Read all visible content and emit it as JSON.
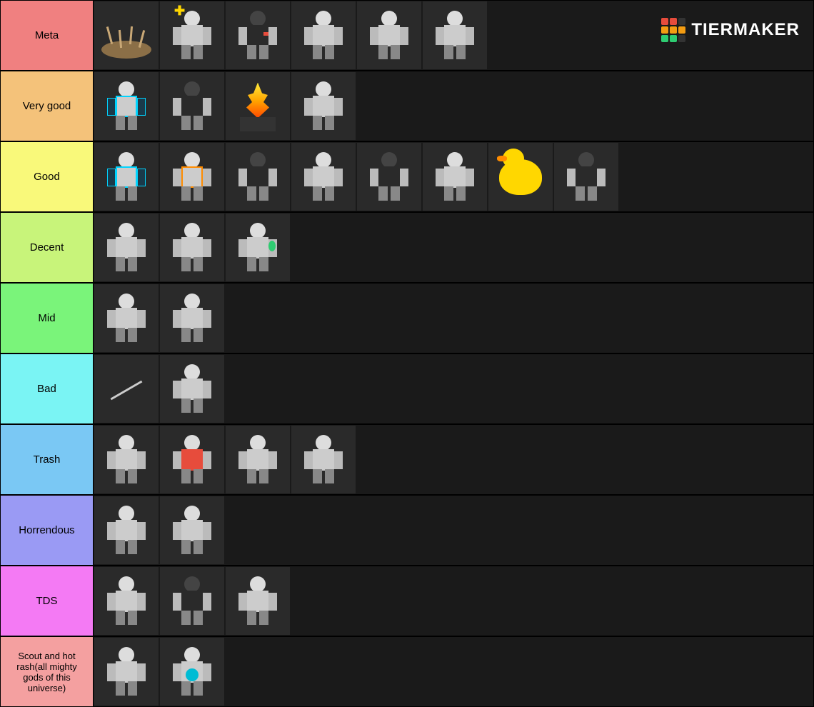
{
  "logo": {
    "text": "TIERMAKER",
    "grid_colors": [
      "#e74c3c",
      "#e74c3c",
      "#333",
      "#f39c12",
      "#f39c12",
      "#f39c12",
      "#2ecc71",
      "#2ecc71",
      "#333"
    ]
  },
  "tiers": [
    {
      "label": "Meta",
      "color": "#f08080",
      "items": [
        {
          "name": "trap-unit",
          "type": "trap"
        },
        {
          "name": "medic-unit",
          "type": "char",
          "accent": "yellow"
        },
        {
          "name": "riot-unit",
          "type": "char",
          "accent": "red-dark"
        },
        {
          "name": "heavy-unit-1",
          "type": "char"
        },
        {
          "name": "sniper-unit",
          "type": "char"
        },
        {
          "name": "soldier-unit-1",
          "type": "char"
        }
      ]
    },
    {
      "label": "Very good",
      "color": "#f4c27a",
      "items": [
        {
          "name": "tech-unit-1",
          "type": "char",
          "accent": "cyan"
        },
        {
          "name": "dark-unit-1",
          "type": "char",
          "accent": "dark"
        },
        {
          "name": "campfire-unit",
          "type": "fire"
        },
        {
          "name": "soldier-unit-2",
          "type": "char"
        }
      ]
    },
    {
      "label": "Good",
      "color": "#f9f97a",
      "items": [
        {
          "name": "tech-unit-2",
          "type": "char",
          "accent": "cyan"
        },
        {
          "name": "mech-unit",
          "type": "char",
          "accent": "orange"
        },
        {
          "name": "cross-unit",
          "type": "char",
          "accent": "dark"
        },
        {
          "name": "blocky-unit",
          "type": "char"
        },
        {
          "name": "turret-unit",
          "type": "char",
          "accent": "dark"
        },
        {
          "name": "dual-unit",
          "type": "char"
        },
        {
          "name": "duck-unit",
          "type": "duck"
        },
        {
          "name": "drone-unit",
          "type": "char",
          "accent": "dark"
        }
      ]
    },
    {
      "label": "Decent",
      "color": "#c8f47a",
      "items": [
        {
          "name": "heavy-unit-2",
          "type": "char"
        },
        {
          "name": "gunner-unit-1",
          "type": "char"
        },
        {
          "name": "chem-unit",
          "type": "char",
          "accent": "green"
        }
      ]
    },
    {
      "label": "Mid",
      "color": "#7af47a",
      "items": [
        {
          "name": "basic-unit-1",
          "type": "char"
        },
        {
          "name": "ranged-unit",
          "type": "char"
        }
      ]
    },
    {
      "label": "Bad",
      "color": "#7af4f4",
      "items": [
        {
          "name": "spear-unit",
          "type": "weapon"
        },
        {
          "name": "basic-unit-2",
          "type": "char"
        }
      ]
    },
    {
      "label": "Trash",
      "color": "#7ac8f4",
      "items": [
        {
          "name": "soldier-unit-3",
          "type": "char"
        },
        {
          "name": "red-unit",
          "type": "char",
          "accent": "redbody"
        },
        {
          "name": "gray-unit-1",
          "type": "char"
        },
        {
          "name": "gray-unit-2",
          "type": "char"
        }
      ]
    },
    {
      "label": "Horrendous",
      "color": "#9a9af4",
      "items": [
        {
          "name": "weak-unit-1",
          "type": "char"
        },
        {
          "name": "weak-unit-2",
          "type": "char"
        }
      ]
    },
    {
      "label": "TDS",
      "color": "#f47af4",
      "items": [
        {
          "name": "tds-unit-1",
          "type": "char"
        },
        {
          "name": "tds-unit-2",
          "type": "char",
          "accent": "dark"
        },
        {
          "name": "tds-unit-3",
          "type": "char"
        }
      ]
    },
    {
      "label": "Scout and hot rash(all mighty gods of this universe)",
      "color": "#f4A0A0",
      "items": [
        {
          "name": "scout-unit",
          "type": "char"
        },
        {
          "name": "rash-unit",
          "type": "char",
          "accent": "bluebody"
        }
      ]
    }
  ]
}
